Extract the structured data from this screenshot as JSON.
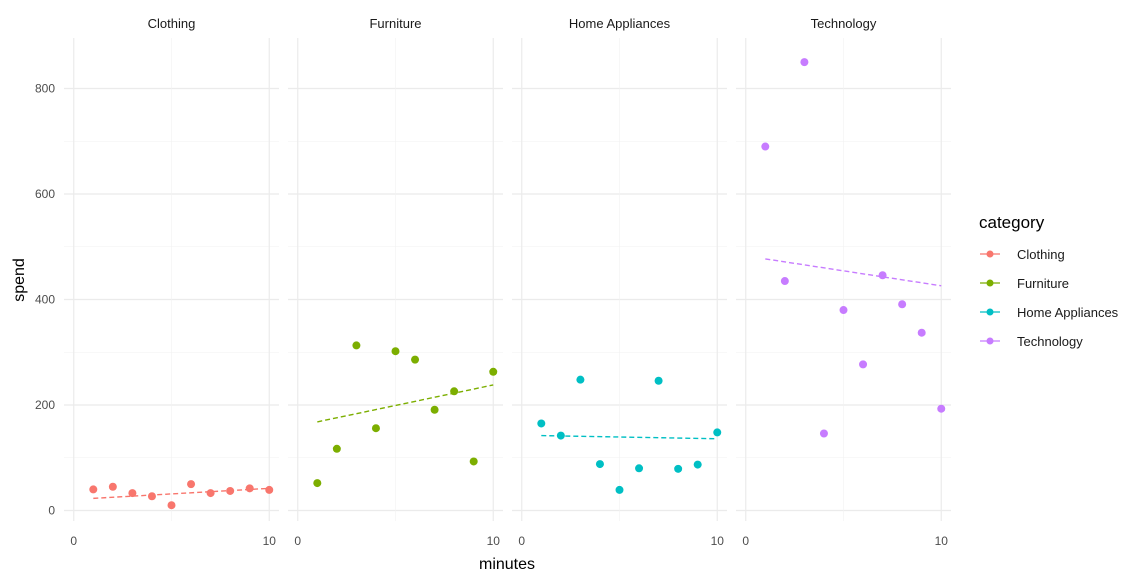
{
  "chart_data": {
    "type": "scatter",
    "xlabel": "minutes",
    "ylabel": "spend",
    "xlim": [
      0,
      10
    ],
    "ylim": [
      0,
      870
    ],
    "x_ticks": [
      0,
      10
    ],
    "y_ticks": [
      0,
      200,
      400,
      600,
      800
    ],
    "grid": true,
    "trend_line": "dashed linear fit per panel",
    "legend": {
      "title": "category",
      "position": "right"
    },
    "panels": [
      {
        "name": "Clothing",
        "color": "#F8766D",
        "x": [
          1,
          2,
          3,
          4,
          5,
          6,
          7,
          8,
          9,
          10
        ],
        "y": [
          40,
          45,
          33,
          27,
          10,
          50,
          33,
          37,
          42,
          39
        ],
        "trend": {
          "x": [
            1,
            10
          ],
          "y": [
            23,
            42
          ]
        }
      },
      {
        "name": "Furniture",
        "color": "#7CAE00",
        "x": [
          1,
          2,
          3,
          4,
          5,
          6,
          7,
          8,
          9,
          10
        ],
        "y": [
          52,
          117,
          313,
          156,
          302,
          286,
          191,
          226,
          93,
          263
        ],
        "trend": {
          "x": [
            1,
            10
          ],
          "y": [
            168,
            238
          ]
        }
      },
      {
        "name": "Home Appliances",
        "color": "#00BFC4",
        "x": [
          1,
          2,
          3,
          4,
          5,
          6,
          7,
          8,
          9,
          10
        ],
        "y": [
          165,
          142,
          248,
          88,
          39,
          80,
          246,
          79,
          87,
          148
        ],
        "trend": {
          "x": [
            1,
            10
          ],
          "y": [
            142,
            136
          ]
        }
      },
      {
        "name": "Technology",
        "color": "#C77CFF",
        "x": [
          1,
          2,
          3,
          4,
          5,
          6,
          7,
          8,
          9,
          10
        ],
        "y": [
          690,
          435,
          850,
          146,
          380,
          277,
          446,
          391,
          337,
          193
        ],
        "trend": {
          "x": [
            1,
            10
          ],
          "y": [
            477,
            426
          ]
        }
      }
    ]
  }
}
